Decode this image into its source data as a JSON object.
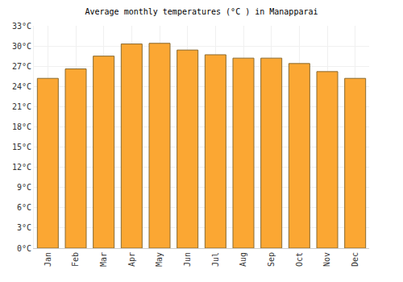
{
  "chart_data": {
    "type": "bar",
    "title": "Average monthly temperatures (°C ) in Manapparai",
    "categories": [
      "Jan",
      "Feb",
      "Mar",
      "Apr",
      "May",
      "Jun",
      "Jul",
      "Aug",
      "Sep",
      "Oct",
      "Nov",
      "Dec"
    ],
    "values": [
      25.2,
      26.6,
      28.5,
      30.3,
      30.4,
      29.4,
      28.7,
      28.2,
      28.2,
      27.4,
      26.2,
      25.2
    ],
    "color": "#fba733",
    "ylim": [
      0,
      33
    ],
    "yticks": [
      {
        "value": 0,
        "label": "0°C"
      },
      {
        "value": 3,
        "label": "3°C"
      },
      {
        "value": 6,
        "label": "6°C"
      },
      {
        "value": 9,
        "label": "9°C"
      },
      {
        "value": 12,
        "label": "12°C"
      },
      {
        "value": 15,
        "label": "15°C"
      },
      {
        "value": 18,
        "label": "18°C"
      },
      {
        "value": 21,
        "label": "21°C"
      },
      {
        "value": 24,
        "label": "24°C"
      },
      {
        "value": 27,
        "label": "27°C"
      },
      {
        "value": 30,
        "label": "30°C"
      },
      {
        "value": 33,
        "label": "33°C"
      }
    ],
    "grid": true
  }
}
